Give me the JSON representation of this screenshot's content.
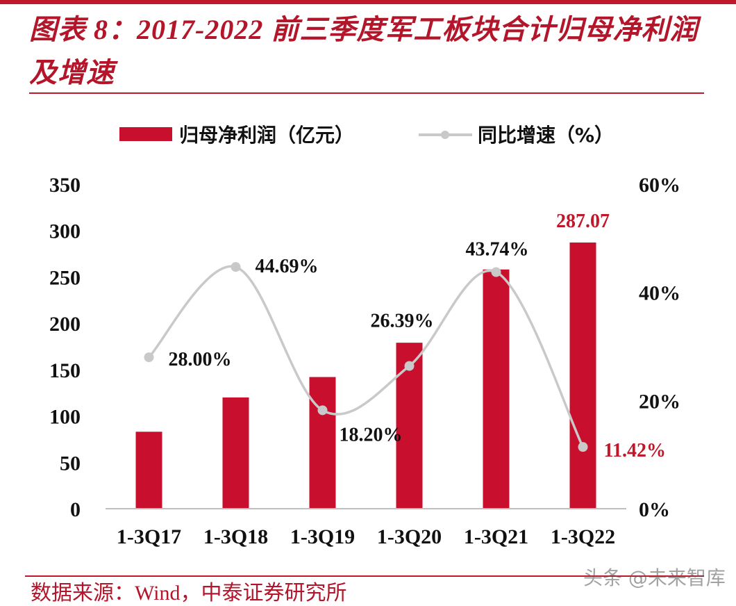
{
  "title": "图表 8：2017-2022 前三季度军工板块合计归母净利润及增速",
  "source": "数据来源：Wind，中泰证券研究所",
  "watermark": "头条 @未来智库",
  "colors": {
    "accent": "#c0182b",
    "bar": "#c8102e",
    "line": "#c9c9c9",
    "highlight_label": "#c0182b"
  },
  "chart_data": {
    "type": "bar",
    "categories": [
      "1-3Q17",
      "1-3Q18",
      "1-3Q19",
      "1-3Q20",
      "1-3Q21",
      "1-3Q22"
    ],
    "series": [
      {
        "name": "归母净利润（亿元）",
        "type": "bar",
        "axis": "left",
        "values": [
          83,
          120,
          142,
          179,
          258,
          287.07
        ]
      },
      {
        "name": "同比增速（%）",
        "type": "line",
        "axis": "right",
        "values": [
          28.0,
          44.69,
          18.2,
          26.39,
          43.74,
          11.42
        ]
      }
    ],
    "value_labels": {
      "bar": [
        "",
        "",
        "",
        "",
        "",
        "287.07"
      ],
      "line": [
        "28.00%",
        "44.69%",
        "18.20%",
        "26.39%",
        "43.74%",
        "11.42%"
      ]
    },
    "ylim_left": [
      0,
      350
    ],
    "yticks_left": [
      "0",
      "50",
      "100",
      "150",
      "200",
      "250",
      "300",
      "350"
    ],
    "ylim_right": [
      0,
      60
    ],
    "yticks_right": [
      "0%",
      "20%",
      "40%",
      "60%"
    ],
    "legend_position": "top",
    "grid": false
  }
}
